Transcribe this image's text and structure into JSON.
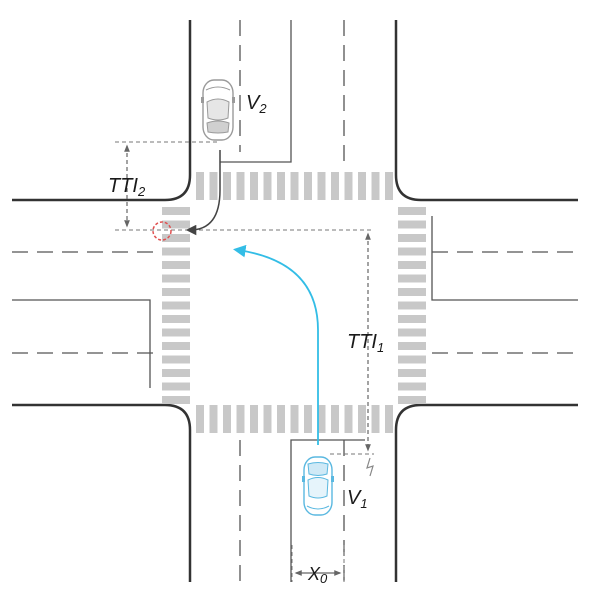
{
  "labels": {
    "v2": {
      "main": "V",
      "sub": "2"
    },
    "v1": {
      "main": "V",
      "sub": "1"
    },
    "tti2": {
      "main": "TTI",
      "sub": "2"
    },
    "tti1": {
      "main": "TTI",
      "sub": "1"
    },
    "x0": {
      "main": "X",
      "sub": "0"
    }
  },
  "colors": {
    "road_edge": "#333333",
    "lane_marking": "#555555",
    "crosswalk": "#c8c8c8",
    "ego_path": "#33bde6",
    "ego_vehicle": "#5ab8e0",
    "other_vehicle": "#9a9a9a",
    "conflict_point": "#e05050",
    "dimension_line": "#777777"
  },
  "icons": {
    "ego_vehicle": "car-top-view-icon",
    "other_vehicle": "car-top-view-icon",
    "conflict_point": "dashed-circle-icon"
  }
}
